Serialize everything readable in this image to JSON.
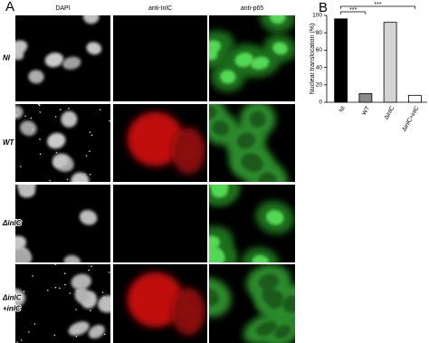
{
  "panel_labels": [
    "A",
    "B"
  ],
  "microscopy": {
    "columns": [
      "DAPI",
      "anti-InlC",
      "anti-p65"
    ],
    "rows": [
      [
        "NI"
      ],
      [
        "WT"
      ],
      [
        "ΔinlC"
      ],
      [
        "ΔinlC",
        "+inlC"
      ]
    ]
  },
  "chart_data": {
    "type": "bar",
    "y_label": "Nuclear translocation (%)",
    "categories": [
      "NI",
      "WT",
      "ΔinlC",
      "ΔinlC+inlC"
    ],
    "values": [
      96,
      10,
      92,
      8
    ],
    "colors": [
      "#000000",
      "#8a8a8a",
      "#d4d4d4",
      "#ffffff"
    ],
    "ylim": [
      0,
      100
    ],
    "yticks": [
      0,
      20,
      40,
      60,
      80,
      100
    ],
    "annotations": [
      "***",
      "***"
    ]
  }
}
